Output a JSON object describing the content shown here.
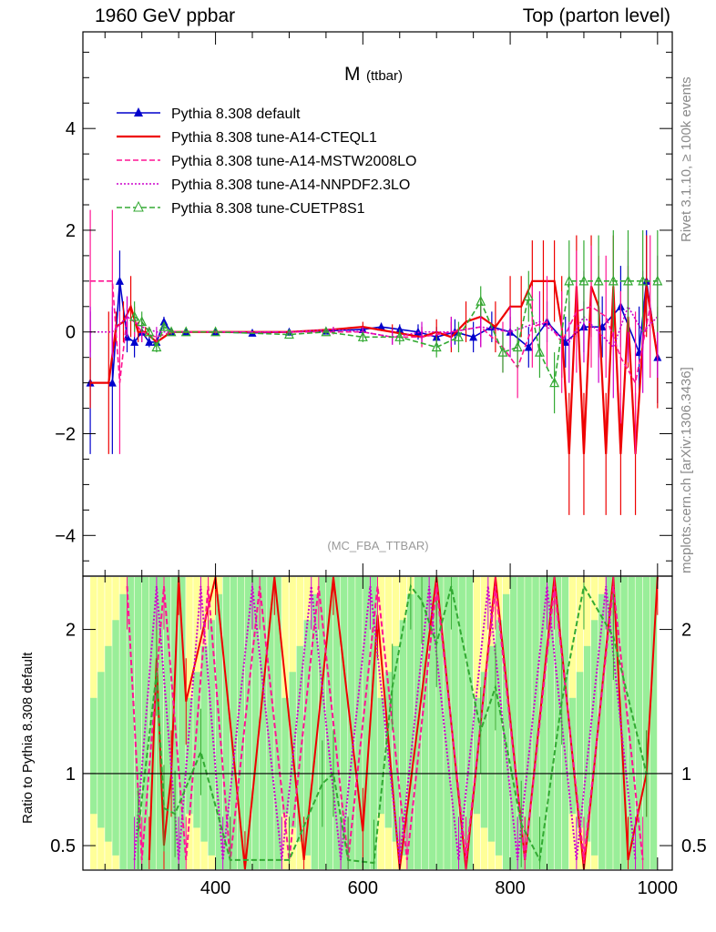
{
  "header": {
    "left": "1960 GeV ppbar",
    "right": "Top (parton level)"
  },
  "side_notes": {
    "rivet": "Rivet 3.1.10, ≥ 100k events",
    "mcplots": "mcplots.cern.ch [arXiv:1306.3436]"
  },
  "chart_data": [
    {
      "type": "line",
      "title": "M",
      "title_sub": "(ttbar)",
      "watermark": "(MC_FBA_TTBAR)",
      "xlim": [
        220,
        1020
      ],
      "ylim": [
        -4.8,
        5.9
      ],
      "yticks": [
        -4,
        -2,
        0,
        2,
        4
      ],
      "ytick_labels": [
        "−4",
        "−2",
        "0",
        "2",
        "4"
      ],
      "grid": false,
      "legend_position": "top-left",
      "series": [
        {
          "name": "Pythia 8.308 default",
          "color": "#0000cc",
          "style": "solid-triangle",
          "x": [
            230,
            260,
            270,
            280,
            290,
            300,
            310,
            320,
            330,
            340,
            360,
            400,
            450,
            500,
            550,
            600,
            625,
            650,
            675,
            700,
            725,
            750,
            775,
            800,
            825,
            850,
            875,
            900,
            925,
            950,
            975,
            985,
            1000
          ],
          "y": [
            -1.0,
            -1.0,
            1.0,
            -0.1,
            -0.2,
            0.0,
            -0.2,
            -0.2,
            0.2,
            0.0,
            0.0,
            0.0,
            -0.02,
            0.0,
            0.02,
            0.05,
            0.1,
            0.05,
            0.0,
            -0.1,
            0.0,
            -0.1,
            0.1,
            0.0,
            -0.3,
            0.2,
            -0.2,
            0.1,
            0.1,
            0.5,
            -0.4,
            1.0,
            -0.5
          ],
          "err": [
            1.4,
            1.4,
            0.6,
            0.3,
            0.3,
            0.2,
            0.1,
            0.1,
            0.1,
            0.05,
            0.03,
            0.03,
            0.03,
            0.03,
            0.04,
            0.06,
            0.08,
            0.1,
            0.15,
            0.2,
            0.25,
            0.3,
            0.3,
            0.3,
            0.4,
            0.4,
            0.5,
            0.5,
            0.6,
            0.8,
            0.9,
            1.0,
            0.9
          ]
        },
        {
          "name": "Pythia 8.308 tune-A14-CTEQL1",
          "color": "#ee0000",
          "style": "solid",
          "x": [
            230,
            255,
            265,
            275,
            285,
            295,
            305,
            320,
            340,
            400,
            500,
            560,
            600,
            640,
            680,
            700,
            720,
            740,
            760,
            780,
            800,
            815,
            830,
            845,
            860,
            870,
            880,
            890,
            900,
            910,
            920,
            930,
            940,
            950,
            960,
            970,
            985,
            1000
          ],
          "y": [
            -1.0,
            -1.0,
            0.1,
            0.2,
            0.5,
            0.0,
            0.0,
            -0.2,
            0.0,
            0.0,
            0.0,
            0.05,
            0.1,
            0.0,
            -0.1,
            0.0,
            -0.1,
            0.2,
            0.3,
            0.1,
            0.5,
            0.5,
            1.0,
            1.0,
            1.0,
            0.1,
            -2.4,
            0.9,
            -2.4,
            0.9,
            0.5,
            -2.4,
            0.9,
            -2.4,
            0.3,
            -2.4,
            0.9,
            -0.5
          ],
          "err": [
            0.5,
            1.4,
            0.3,
            0.4,
            0.6,
            0.2,
            0.1,
            0.1,
            0.05,
            0.03,
            0.03,
            0.05,
            0.1,
            0.15,
            0.2,
            0.25,
            0.3,
            0.4,
            0.4,
            0.5,
            0.6,
            0.6,
            0.8,
            0.8,
            0.8,
            1.0,
            1.2,
            1.0,
            1.2,
            1.0,
            1.0,
            1.2,
            1.0,
            1.2,
            1.0,
            1.2,
            1.0,
            1.0
          ]
        },
        {
          "name": "Pythia 8.308 tune-A14-MSTW2008LO",
          "color": "#ff1493",
          "style": "dashed",
          "x": [
            230,
            260,
            270,
            280,
            290,
            300,
            320,
            340,
            400,
            500,
            560,
            600,
            640,
            680,
            720,
            760,
            790,
            810,
            830,
            850,
            870,
            890,
            910,
            930,
            950,
            970,
            990
          ],
          "y": [
            1.0,
            1.0,
            -1.0,
            0.3,
            0.2,
            0.0,
            -0.1,
            0.0,
            0.0,
            0.0,
            0.0,
            0.0,
            -0.1,
            -0.1,
            0.0,
            0.1,
            -0.3,
            -0.7,
            0.1,
            0.2,
            -0.2,
            0.4,
            0.5,
            0.3,
            -0.5,
            -1.0,
            0.5
          ],
          "err": [
            1.4,
            1.4,
            1.4,
            0.4,
            0.3,
            0.2,
            0.1,
            0.05,
            0.03,
            0.03,
            0.05,
            0.1,
            0.15,
            0.2,
            0.3,
            0.4,
            0.5,
            0.6,
            0.8,
            0.9,
            1.0,
            1.2,
            1.2,
            1.2,
            1.3,
            1.4,
            1.4
          ]
        },
        {
          "name": "Pythia 8.308 tune-A14-NNPDF2.3LO",
          "color": "#cc00cc",
          "style": "dotted",
          "x": [
            230,
            260,
            280,
            300,
            320,
            340,
            400,
            500,
            560,
            600,
            640,
            680,
            720,
            760,
            800,
            840,
            880,
            900,
            920,
            940,
            960,
            980,
            1000
          ],
          "y": [
            0.0,
            0.0,
            0.3,
            0.1,
            0.0,
            0.0,
            0.0,
            0.0,
            0.05,
            0.0,
            -0.1,
            0.0,
            0.0,
            0.1,
            0.0,
            0.2,
            -0.2,
            0.3,
            0.0,
            -0.3,
            0.5,
            0.0,
            0.3
          ],
          "err": [
            0.5,
            0.5,
            0.4,
            0.2,
            0.1,
            0.05,
            0.03,
            0.03,
            0.05,
            0.1,
            0.15,
            0.2,
            0.3,
            0.4,
            0.5,
            0.6,
            0.8,
            0.9,
            1.0,
            1.0,
            1.1,
            1.2,
            1.2
          ]
        },
        {
          "name": "Pythia 8.308 tune-CUETP8S1",
          "color": "#33aa33",
          "style": "dashed-open-triangle",
          "x": [
            290,
            300,
            310,
            320,
            330,
            340,
            360,
            400,
            500,
            550,
            600,
            650,
            700,
            730,
            760,
            790,
            810,
            825,
            840,
            860,
            880,
            900,
            920,
            940,
            960,
            980,
            1000
          ],
          "y": [
            0.3,
            0.2,
            0.0,
            -0.3,
            0.1,
            0.0,
            0.0,
            0.0,
            -0.05,
            0.0,
            -0.1,
            -0.1,
            -0.3,
            -0.1,
            0.6,
            -0.4,
            -0.3,
            0.7,
            -0.4,
            -1.0,
            1.0,
            1.0,
            1.0,
            1.0,
            1.0,
            1.0,
            1.0
          ],
          "err": [
            0.3,
            0.2,
            0.1,
            0.1,
            0.08,
            0.05,
            0.03,
            0.03,
            0.03,
            0.05,
            0.1,
            0.15,
            0.2,
            0.3,
            0.3,
            0.4,
            0.4,
            0.5,
            0.5,
            0.6,
            0.8,
            0.8,
            0.9,
            1.0,
            1.0,
            1.0,
            1.0
          ]
        }
      ]
    },
    {
      "type": "line",
      "title": "",
      "ylabel": "Ratio to Pythia 8.308 default",
      "xlim": [
        220,
        1020
      ],
      "ylim": [
        0.33,
        2.37
      ],
      "yticks": [
        0.5,
        1,
        2
      ],
      "ytick_labels": [
        "0.5",
        "1",
        "2"
      ],
      "xticks": [
        400,
        600,
        800,
        1000
      ],
      "xtick_labels": [
        "400",
        "600",
        "800",
        "1000"
      ],
      "reference_line": 1.0,
      "uncertainty_bands": [
        "yellow",
        "green"
      ],
      "series": [
        {
          "name": "Pythia 8.308 tune-A14-CTEQL1",
          "color": "#ee0000",
          "x": [
            310,
            320,
            330,
            340,
            350,
            360,
            400,
            440,
            480,
            520,
            560,
            600,
            620,
            650,
            700,
            740,
            780,
            820,
            860,
            900,
            940,
            960,
            985,
            1000
          ],
          "y": [
            0.4,
            1.8,
            0.5,
            1.0,
            2.4,
            1.5,
            2.4,
            0.3,
            2.4,
            0.4,
            2.4,
            0.6,
            2.1,
            0.3,
            2.4,
            0.3,
            2.4,
            0.4,
            2.4,
            0.3,
            2.4,
            0.4,
            1.0,
            2.4
          ]
        },
        {
          "name": "Pythia 8.308 tune-A14-MSTW2008LO",
          "color": "#ff1493",
          "x": [
            280,
            300,
            330,
            360,
            390,
            420,
            460,
            500,
            540,
            580,
            620,
            660,
            700,
            740,
            780,
            820,
            860,
            900,
            940,
            980
          ],
          "y": [
            2.3,
            0.4,
            2.3,
            0.4,
            2.3,
            0.4,
            2.3,
            0.4,
            2.3,
            0.4,
            2.3,
            0.4,
            2.3,
            0.4,
            2.3,
            0.4,
            2.3,
            0.4,
            2.3,
            0.4
          ]
        },
        {
          "name": "Pythia 8.308 tune-A14-NNPDF2.3LO",
          "color": "#cc00cc",
          "x": [
            290,
            320,
            350,
            380,
            410,
            450,
            490,
            530,
            570,
            610,
            650,
            690,
            730,
            770,
            810,
            850,
            890,
            930,
            970
          ],
          "y": [
            0.4,
            2.3,
            0.4,
            2.3,
            0.4,
            2.3,
            0.4,
            2.3,
            0.4,
            2.3,
            0.4,
            2.3,
            0.4,
            2.3,
            0.4,
            2.3,
            0.4,
            2.3,
            0.4
          ]
        },
        {
          "name": "Pythia 8.308 tune-CUETP8S1",
          "color": "#33aa33",
          "x": [
            295,
            320,
            330,
            345,
            380,
            420,
            500,
            545,
            560,
            580,
            615,
            640,
            665,
            680,
            700,
            720,
            760,
            780,
            815,
            840,
            870,
            900,
            940,
            985
          ],
          "y": [
            0.6,
            1.7,
            0.76,
            0.72,
            1.15,
            0.4,
            0.4,
            0.93,
            1.0,
            0.4,
            0.38,
            1.6,
            2.3,
            2.2,
            1.9,
            2.3,
            1.3,
            1.6,
            0.65,
            0.4,
            1.5,
            2.3,
            1.95,
            1.0
          ]
        }
      ]
    }
  ]
}
